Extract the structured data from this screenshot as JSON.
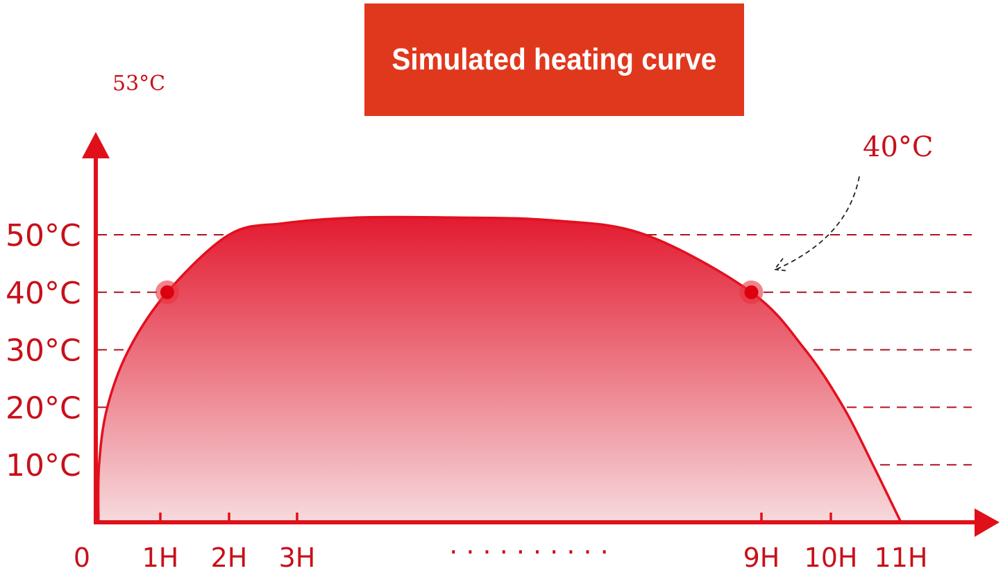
{
  "chart_data": {
    "type": "area",
    "title": "Simulated heating curve",
    "xlabel": "",
    "ylabel": "",
    "x_ticks": [
      {
        "value": 0,
        "label": "0",
        "tick": false
      },
      {
        "value": 1,
        "label": "1H",
        "tick": true
      },
      {
        "value": 2,
        "label": "2H",
        "tick": true
      },
      {
        "value": 3,
        "label": "3H",
        "tick": true
      },
      {
        "value": 9,
        "label": "9H",
        "tick": true
      },
      {
        "value": 10,
        "label": "10H",
        "tick": true
      },
      {
        "value": 11,
        "label": "11H",
        "tick": false
      }
    ],
    "x_gap_label": "· · · · · · · · · ·",
    "y_ticks": [
      {
        "value": 10,
        "label": "10°C"
      },
      {
        "value": 20,
        "label": "20°C"
      },
      {
        "value": 30,
        "label": "30°C"
      },
      {
        "value": 40,
        "label": "40°C"
      },
      {
        "value": 50,
        "label": "50°C"
      }
    ],
    "ylim": [
      0,
      56
    ],
    "grid": "horizontal dashed",
    "series": [
      {
        "x": [
          0.02,
          0.03,
          0.16,
          0.5,
          1.1,
          2.0,
          2.8,
          3.8,
          5.0,
          6.3,
          7.5,
          8.87,
          9.63,
          10.18,
          10.6,
          11.0
        ],
        "y": [
          0,
          10,
          20,
          30,
          40,
          50,
          52,
          53,
          53,
          52.5,
          50,
          40,
          30,
          20,
          10,
          0
        ]
      }
    ],
    "highlight_points": [
      {
        "x": 1.1,
        "y": 40
      },
      {
        "x": 8.87,
        "y": 40
      }
    ],
    "annotations": [
      {
        "text": "53°C",
        "position": "top-left"
      },
      {
        "text": "40°C",
        "position": "top-right",
        "arrow_to": {
          "x": 8.87,
          "y": 40
        }
      }
    ],
    "colors": {
      "axis": "#e0101a",
      "curve": "#e3101e",
      "fill_top": "#e31a30",
      "fill_bottom": "#f6dadd",
      "grid": "#b01020",
      "title_bg": "#e0381d",
      "label": "#c8101a"
    }
  }
}
